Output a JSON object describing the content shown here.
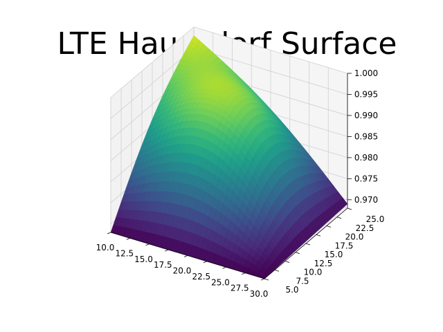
{
  "chart_data": {
    "type": "surface",
    "title": "LTE Haussdorf Surface",
    "xlabel": "",
    "ylabel": "",
    "zlabel": "",
    "xlim": [
      10,
      30
    ],
    "ylim": [
      5,
      25
    ],
    "zlim": [
      0.968,
      1.0
    ],
    "x_ticks": [
      "10.0",
      "12.5",
      "15.0",
      "17.5",
      "20.0",
      "22.5",
      "25.0",
      "27.5",
      "30.0"
    ],
    "y_ticks": [
      "5.0",
      "7.5",
      "10.0",
      "12.5",
      "15.0",
      "17.5",
      "20.0",
      "22.5",
      "25.0"
    ],
    "z_ticks": [
      "0.970",
      "0.975",
      "0.980",
      "0.985",
      "0.990",
      "0.995",
      "1.000"
    ],
    "peak": {
      "x": 10.0,
      "y": 25.0,
      "z": 0.998
    },
    "corners": [
      {
        "x": 10.0,
        "y": 5.0,
        "z": 0.968
      },
      {
        "x": 30.0,
        "y": 5.0,
        "z": 0.968
      },
      {
        "x": 30.0,
        "y": 25.0,
        "z": 0.969
      },
      {
        "x": 10.0,
        "y": 25.0,
        "z": 0.998
      }
    ],
    "colormap": "viridis",
    "grid": true
  }
}
